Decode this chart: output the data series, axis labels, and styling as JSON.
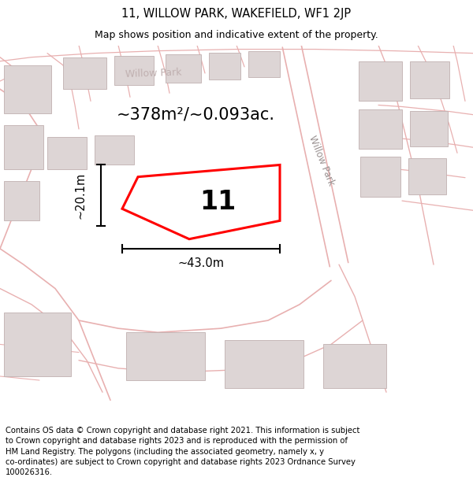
{
  "title_line1": "11, WILLOW PARK, WAKEFIELD, WF1 2JP",
  "title_line2": "Map shows position and indicative extent of the property.",
  "footer_text": "Contains OS data © Crown copyright and database right 2021. This information is subject to Crown copyright and database rights 2023 and is reproduced with the permission of HM Land Registry. The polygons (including the associated geometry, namely x, y co-ordinates) are subject to Crown copyright and database rights 2023 Ordnance Survey 100026316.",
  "area_label": "~378m²/~0.093ac.",
  "number_label": "11",
  "dim_width": "~43.0m",
  "dim_height": "~20.1m",
  "map_bg": "#f7f0f0",
  "plot_color_face": "#ffffff",
  "plot_color_edge": "#ff0000",
  "road_color": "#e8b0b0",
  "building_color": "#ddd5d5",
  "building_edge": "#c0b0b0",
  "title_fontsize": 10.5,
  "subtitle_fontsize": 9,
  "footer_fontsize": 7.2,
  "area_fontsize": 15,
  "number_fontsize": 24,
  "dim_fontsize": 10.5,
  "street_label_color": "#b0a0a0",
  "street_label_size": 8.5
}
